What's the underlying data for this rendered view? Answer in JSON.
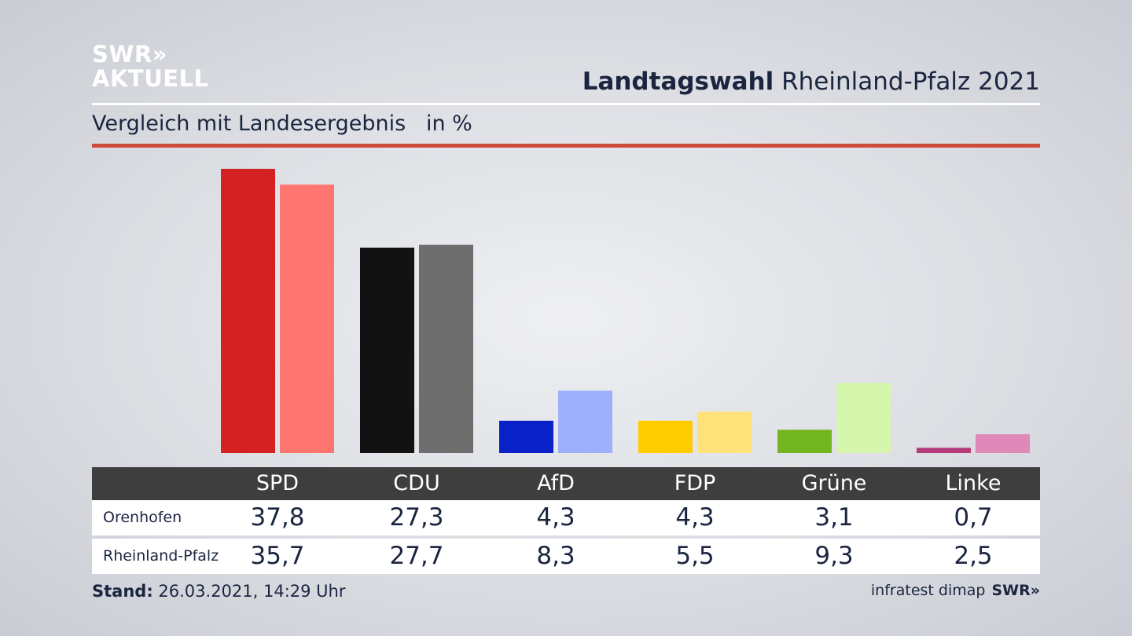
{
  "logo": {
    "line1": "SWR»",
    "line2": "AKTUELL"
  },
  "title": {
    "bold": "Landtagswahl",
    "rest": " Rheinland-Pfalz 2021"
  },
  "subtitle": "Vergleich mit Landesergebnis   in %",
  "table": {
    "rows": [
      {
        "label": "Orenhofen",
        "values": [
          "37,8",
          "27,3",
          "4,3",
          "4,3",
          "3,1",
          "0,7"
        ]
      },
      {
        "label": "Rheinland-Pfalz",
        "values": [
          "35,7",
          "27,7",
          "8,3",
          "5,5",
          "9,3",
          "2,5"
        ]
      }
    ]
  },
  "footer": {
    "stand_label": "Stand:",
    "stand_value": " 26.03.2021, 14:29 Uhr",
    "source": "infratest dimap",
    "brand": "SWR»"
  },
  "chart_data": {
    "type": "bar",
    "categories": [
      "SPD",
      "CDU",
      "AfD",
      "FDP",
      "Grüne",
      "Linke"
    ],
    "series": [
      {
        "name": "Orenhofen",
        "values": [
          37.8,
          27.3,
          4.3,
          4.3,
          3.1,
          0.7
        ]
      },
      {
        "name": "Rheinland-Pfalz",
        "values": [
          35.7,
          27.7,
          8.3,
          5.5,
          9.3,
          2.5
        ]
      }
    ],
    "colors": {
      "Orenhofen": [
        "#d42121",
        "#121212",
        "#0a21c8",
        "#ffcc00",
        "#72b51e",
        "#b53a7a"
      ],
      "Rheinland-Pfalz": [
        "#ff7570",
        "#6f6e6e",
        "#9eaffc",
        "#ffe27a",
        "#d6f5ad",
        "#e088b8"
      ]
    },
    "ylim": [
      0,
      37.8
    ]
  }
}
